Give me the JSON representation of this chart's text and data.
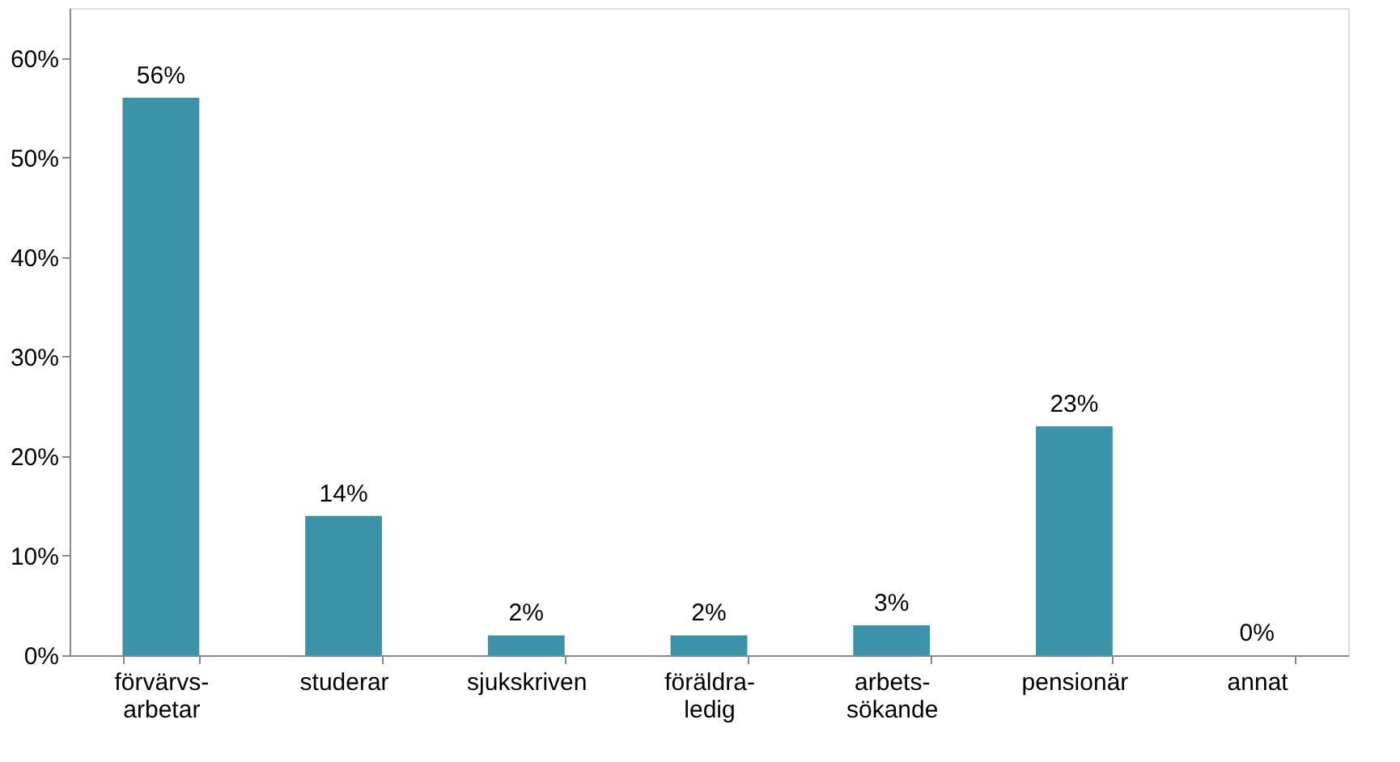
{
  "chart_data": {
    "type": "bar",
    "categories": [
      "förvärvs- arbetar",
      "studerar",
      "sjukskriven",
      "föräldra- ledig",
      "arbets- sökande",
      "pensionär",
      "annat"
    ],
    "values": [
      56,
      14,
      2,
      2,
      3,
      23,
      0
    ],
    "value_labels": [
      "56%",
      "14%",
      "2%",
      "2%",
      "3%",
      "23%",
      "0%"
    ],
    "color": "#3a93a8",
    "ylim": [
      0,
      65
    ],
    "yticks": [
      {
        "value": 0,
        "label": "0%"
      },
      {
        "value": 10,
        "label": "10%"
      },
      {
        "value": 20,
        "label": "20%"
      },
      {
        "value": 30,
        "label": "30%"
      },
      {
        "value": 40,
        "label": "40%"
      },
      {
        "value": 50,
        "label": "50%"
      },
      {
        "value": 60,
        "label": "60%"
      }
    ],
    "grid": false
  }
}
